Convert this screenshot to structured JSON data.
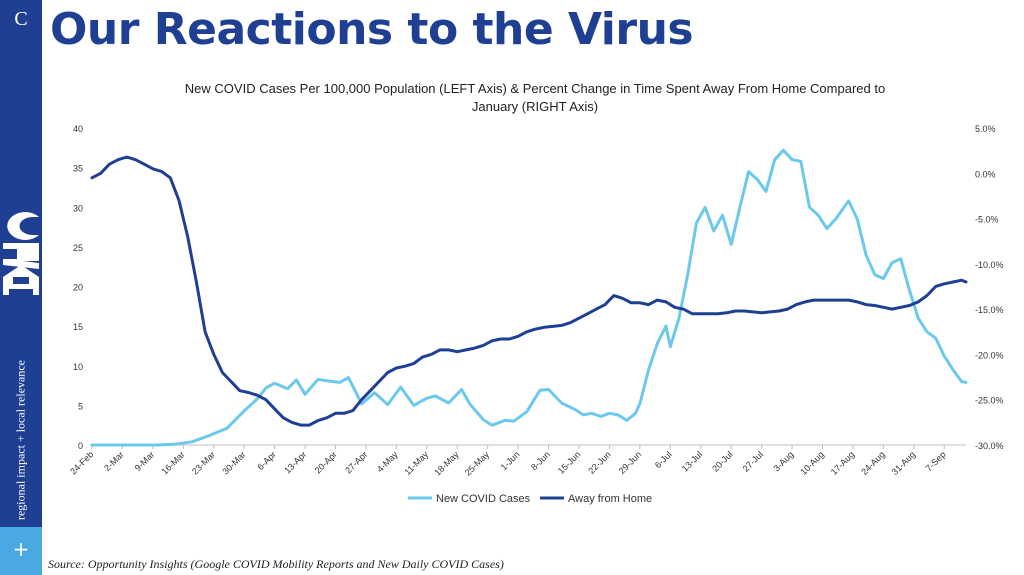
{
  "sidebar": {
    "letter": "C",
    "logo": "ARC",
    "tagline": "regional impact + local relevance",
    "plus": "+"
  },
  "page": {
    "title": "Our Reactions to the Virus",
    "source": "Source: Opportunity Insights (Google COVID Mobility Reports and New Daily COVID Cases)"
  },
  "chart_data": {
    "type": "line",
    "title_line1": "New COVID Cases Per 100,000 Population (LEFT Axis) & Percent Change  in Time  Spent Away From Home Compared to",
    "title_line2": "January (RIGHT Axis)",
    "colors": {
      "cases": "#6cc8ec",
      "away": "#1f3f93",
      "axis": "#bfbfbf"
    },
    "left_axis": {
      "min": 0,
      "max": 40,
      "ticks": [
        "0",
        "5",
        "10",
        "15",
        "20",
        "25",
        "30",
        "35",
        "40"
      ]
    },
    "right_axis": {
      "min": -30,
      "max": 5,
      "ticks": [
        "-30.0%",
        "-25.0%",
        "-20.0%",
        "-15.0%",
        "-10.0%",
        "-5.0%",
        "0.0%",
        "5.0%"
      ]
    },
    "x_axis": {
      "start": "24-Feb",
      "end": "12-Sep",
      "ticks": [
        "24-Feb",
        "2-Mar",
        "9-Mar",
        "16-Mar",
        "23-Mar",
        "30-Mar",
        "6-Apr",
        "13-Apr",
        "20-Apr",
        "27-Apr",
        "4-May",
        "11-May",
        "18-May",
        "25-May",
        "1-Jun",
        "8-Jun",
        "15-Jun",
        "22-Jun",
        "29-Jun",
        "6-Jul",
        "13-Jul",
        "20-Jul",
        "27-Jul",
        "3-Aug",
        "10-Aug",
        "17-Aug",
        "24-Aug",
        "31-Aug",
        "7-Sep"
      ]
    },
    "legend_position": "bottom",
    "series": [
      {
        "name": "New COVID Cases",
        "axis": "left",
        "dates": [
          "24-Feb",
          "10-Mar",
          "14-Mar",
          "18-Mar",
          "22-Mar",
          "26-Mar",
          "30-Mar",
          "2-Apr",
          "4-Apr",
          "6-Apr",
          "9-Apr",
          "11-Apr",
          "13-Apr",
          "16-Apr",
          "18-Apr",
          "21-Apr",
          "23-Apr",
          "26-Apr",
          "29-Apr",
          "2-May",
          "5-May",
          "8-May",
          "11-May",
          "13-May",
          "16-May",
          "19-May",
          "21-May",
          "24-May",
          "26-May",
          "29-May",
          "31-May",
          "3-Jun",
          "6-Jun",
          "8-Jun",
          "11-Jun",
          "14-Jun",
          "16-Jun",
          "18-Jun",
          "20-Jun",
          "22-Jun",
          "24-Jun",
          "26-Jun",
          "28-Jun",
          "29-Jun",
          "1-Jul",
          "3-Jul",
          "5-Jul",
          "6-Jul",
          "8-Jul",
          "10-Jul",
          "12-Jul",
          "14-Jul",
          "16-Jul",
          "18-Jul",
          "20-Jul",
          "22-Jul",
          "24-Jul",
          "26-Jul",
          "28-Jul",
          "30-Jul",
          "1-Aug",
          "3-Aug",
          "5-Aug",
          "7-Aug",
          "9-Aug",
          "11-Aug",
          "13-Aug",
          "16-Aug",
          "18-Aug",
          "20-Aug",
          "22-Aug",
          "24-Aug",
          "26-Aug",
          "28-Aug",
          "30-Aug",
          "1-Sep",
          "3-Sep",
          "5-Sep",
          "7-Sep",
          "9-Sep",
          "11-Sep",
          "12-Sep"
        ],
        "values": [
          0,
          0,
          0.1,
          0.4,
          1.2,
          2.1,
          4.3,
          5.8,
          7.2,
          7.8,
          7.1,
          8.2,
          6.4,
          8.3,
          8.1,
          7.9,
          8.5,
          5.2,
          6.6,
          5.1,
          7.3,
          5.0,
          5.9,
          6.2,
          5.3,
          7.0,
          5.1,
          3.2,
          2.5,
          3.1,
          3.0,
          4.2,
          6.9,
          7.0,
          5.3,
          4.5,
          3.8,
          4.0,
          3.6,
          4.0,
          3.8,
          3.1,
          4.0,
          5.2,
          9.5,
          12.8,
          15.0,
          12.4,
          16.0,
          21.5,
          28.0,
          30.0,
          27.0,
          29.0,
          25.3,
          30.0,
          34.5,
          33.5,
          32.0,
          36.0,
          37.2,
          36.0,
          35.8,
          30.0,
          29.0,
          27.3,
          28.5,
          30.8,
          28.5,
          24.0,
          21.5,
          21.0,
          23.0,
          23.5,
          19.5,
          16.0,
          14.3,
          13.5,
          11.2,
          9.5,
          8.0,
          7.9
        ]
      },
      {
        "name": "Away from Home",
        "axis": "right",
        "dates": [
          "24-Feb",
          "26-Feb",
          "28-Feb",
          "1-Mar",
          "3-Mar",
          "5-Mar",
          "7-Mar",
          "9-Mar",
          "11-Mar",
          "13-Mar",
          "15-Mar",
          "17-Mar",
          "19-Mar",
          "21-Mar",
          "23-Mar",
          "25-Mar",
          "27-Mar",
          "29-Mar",
          "31-Mar",
          "2-Apr",
          "4-Apr",
          "6-Apr",
          "8-Apr",
          "10-Apr",
          "12-Apr",
          "14-Apr",
          "16-Apr",
          "18-Apr",
          "20-Apr",
          "22-Apr",
          "24-Apr",
          "26-Apr",
          "28-Apr",
          "30-Apr",
          "2-May",
          "4-May",
          "6-May",
          "8-May",
          "10-May",
          "12-May",
          "14-May",
          "16-May",
          "18-May",
          "20-May",
          "22-May",
          "24-May",
          "26-May",
          "28-May",
          "30-May",
          "1-Jun",
          "3-Jun",
          "5-Jun",
          "7-Jun",
          "9-Jun",
          "11-Jun",
          "13-Jun",
          "15-Jun",
          "17-Jun",
          "19-Jun",
          "21-Jun",
          "23-Jun",
          "25-Jun",
          "27-Jun",
          "29-Jun",
          "1-Jul",
          "3-Jul",
          "5-Jul",
          "7-Jul",
          "9-Jul",
          "11-Jul",
          "13-Jul",
          "15-Jul",
          "17-Jul",
          "19-Jul",
          "21-Jul",
          "23-Jul",
          "25-Jul",
          "27-Jul",
          "29-Jul",
          "31-Jul",
          "2-Aug",
          "4-Aug",
          "6-Aug",
          "8-Aug",
          "10-Aug",
          "12-Aug",
          "14-Aug",
          "16-Aug",
          "18-Aug",
          "20-Aug",
          "22-Aug",
          "24-Aug",
          "26-Aug",
          "28-Aug",
          "30-Aug",
          "1-Sep",
          "3-Sep",
          "5-Sep",
          "7-Sep",
          "9-Sep",
          "11-Sep",
          "12-Sep"
        ],
        "values": [
          -0.5,
          0.0,
          1.0,
          1.5,
          1.8,
          1.5,
          1.0,
          0.5,
          0.2,
          -0.5,
          -3.0,
          -7.0,
          -12.0,
          -17.5,
          -20.0,
          -22.0,
          -23.0,
          -24.0,
          -24.2,
          -24.5,
          -25.0,
          -26.0,
          -27.0,
          -27.5,
          -27.8,
          -27.8,
          -27.3,
          -27.0,
          -26.5,
          -26.5,
          -26.2,
          -25.0,
          -24.0,
          -23.0,
          -22.0,
          -21.5,
          -21.3,
          -21.0,
          -20.3,
          -20.0,
          -19.5,
          -19.5,
          -19.7,
          -19.5,
          -19.3,
          -19.0,
          -18.5,
          -18.3,
          -18.3,
          -18.0,
          -17.5,
          -17.2,
          -17.0,
          -16.9,
          -16.8,
          -16.5,
          -16.0,
          -15.5,
          -15.0,
          -14.5,
          -13.5,
          -13.8,
          -14.3,
          -14.3,
          -14.5,
          -14.0,
          -14.2,
          -14.8,
          -15.0,
          -15.5,
          -15.5,
          -15.5,
          -15.5,
          -15.4,
          -15.2,
          -15.2,
          -15.3,
          -15.4,
          -15.3,
          -15.2,
          -15.0,
          -14.5,
          -14.2,
          -14.0,
          -14.0,
          -14.0,
          -14.0,
          -14.0,
          -14.2,
          -14.5,
          -14.6,
          -14.8,
          -15.0,
          -14.8,
          -14.6,
          -14.2,
          -13.5,
          -12.5,
          -12.2,
          -12.0,
          -11.8,
          -12.0
        ]
      }
    ]
  }
}
